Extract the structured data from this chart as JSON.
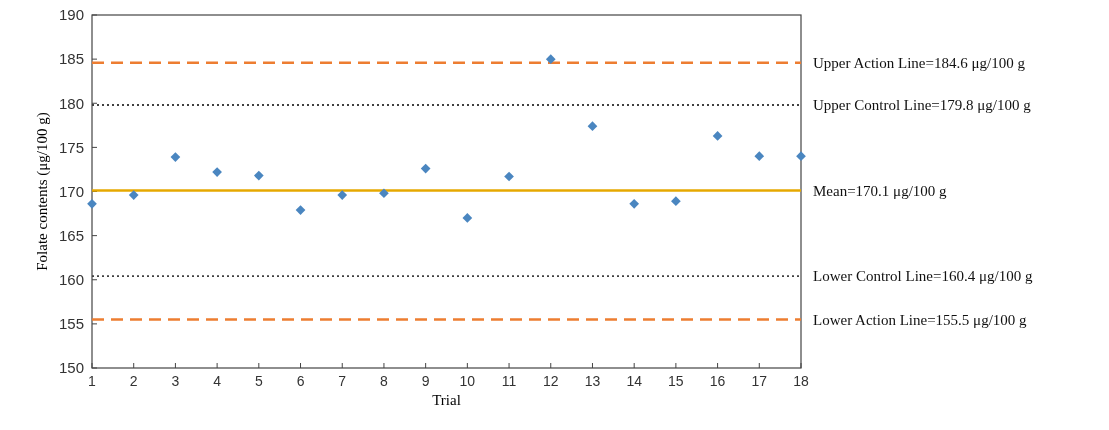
{
  "chart_data": {
    "type": "scatter",
    "xlabel": "Trial",
    "ylabel": "Folate contents (μg/100 g)",
    "x": [
      1,
      2,
      3,
      4,
      5,
      6,
      7,
      8,
      9,
      10,
      11,
      12,
      13,
      14,
      15,
      16,
      17,
      18
    ],
    "series": [
      {
        "color": "#4a86c0",
        "values": [
          168.6,
          169.6,
          173.9,
          172.2,
          171.8,
          167.9,
          169.6,
          169.8,
          172.6,
          167.0,
          171.7,
          185.0,
          177.4,
          168.6,
          168.9,
          176.3,
          174.0,
          174.0
        ]
      }
    ],
    "xlim": [
      1,
      18
    ],
    "xticks": [
      1,
      2,
      3,
      4,
      5,
      6,
      7,
      8,
      9,
      10,
      11,
      12,
      13,
      14,
      15,
      16,
      17,
      18
    ],
    "ylim": [
      150,
      190
    ],
    "yticks": [
      150,
      155,
      160,
      165,
      170,
      175,
      180,
      185,
      190
    ],
    "marker": "diamond",
    "grid": false,
    "ref_lines": [
      {
        "axis": "y",
        "value": 184.6,
        "label": "Upper Action Line=184.6 μg/100 g",
        "color": "#ed7d31",
        "line_style": "dashed"
      },
      {
        "axis": "y",
        "value": 179.8,
        "label": "Upper Control Line=179.8 μg/100 g",
        "color": "#404040",
        "line_style": "dotted"
      },
      {
        "axis": "y",
        "value": 170.1,
        "label": "Mean=170.1 μg/100 g",
        "color": "#e6a800",
        "line_style": "solid"
      },
      {
        "axis": "y",
        "value": 160.4,
        "label": "Lower Control Line=160.4 μg/100 g",
        "color": "#404040",
        "line_style": "dotted"
      },
      {
        "axis": "y",
        "value": 155.5,
        "label": "Lower Action Line=155.5 μg/100 g",
        "color": "#ed7d31",
        "line_style": "dashed"
      }
    ]
  }
}
